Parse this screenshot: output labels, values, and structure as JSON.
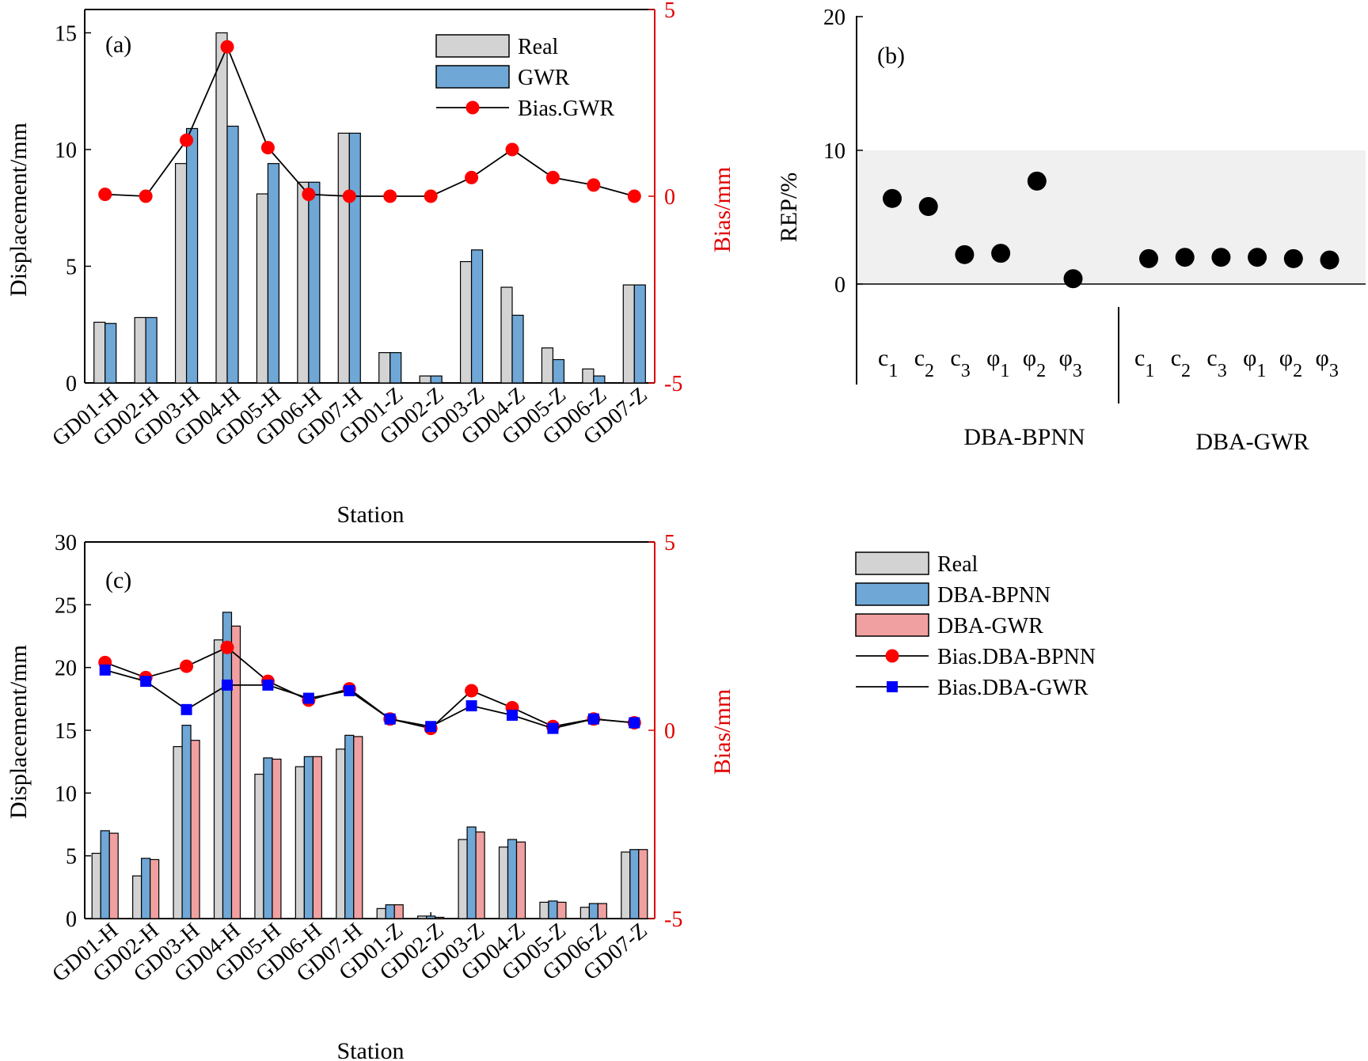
{
  "chart_data": [
    {
      "id": "a",
      "type": "bar",
      "panel_label": "(a)",
      "xlabel": "Station",
      "ylabel": "Displacement/mm",
      "ylabel_right": "Bias/mm",
      "ylim": [
        0,
        16
      ],
      "yticks": [
        "0",
        "5",
        "10",
        "15"
      ],
      "ylim_right": [
        -5,
        5
      ],
      "yticks_right": [
        "-5",
        "0",
        "5"
      ],
      "categories": [
        "GD01-H",
        "GD02-H",
        "GD03-H",
        "GD04-H",
        "GD05-H",
        "GD06-H",
        "GD07-H",
        "GD01-Z",
        "GD02-Z",
        "GD03-Z",
        "GD04-Z",
        "GD05-Z",
        "GD06-Z",
        "GD07-Z"
      ],
      "series": [
        {
          "name": "Real",
          "kind": "bar",
          "color": "#d3d3d3",
          "values": [
            2.6,
            2.8,
            9.4,
            15.0,
            8.1,
            8.6,
            10.7,
            1.3,
            0.3,
            5.2,
            4.1,
            1.5,
            0.6,
            4.2
          ]
        },
        {
          "name": "GWR",
          "kind": "bar",
          "color": "#6fa7d6",
          "values": [
            2.55,
            2.8,
            10.9,
            11.0,
            9.4,
            8.6,
            10.7,
            1.3,
            0.3,
            5.7,
            2.9,
            1.0,
            0.3,
            4.2
          ]
        },
        {
          "name": "Bias.GWR",
          "kind": "line",
          "axis": "right",
          "color": "#ff0000",
          "marker": "circle",
          "values": [
            0.05,
            0.0,
            1.5,
            4.0,
            1.3,
            0.05,
            0.0,
            0.0,
            0.0,
            0.5,
            1.25,
            0.5,
            0.3,
            0.0
          ]
        }
      ],
      "legend": "top-right"
    },
    {
      "id": "b",
      "type": "scatter",
      "panel_label": "(b)",
      "ylabel": "REP/%",
      "ylim": [
        -8,
        20
      ],
      "yticks": [
        "0",
        "10",
        "20"
      ],
      "shaded_band": [
        0,
        10
      ],
      "groups": [
        {
          "name": "DBA-BPNN",
          "params": [
            "c",
            "c",
            "c",
            "φ",
            "φ",
            "φ"
          ],
          "subscripts": [
            "1",
            "2",
            "3",
            "1",
            "2",
            "3"
          ],
          "values": [
            6.4,
            5.8,
            2.2,
            2.3,
            7.7,
            0.4
          ]
        },
        {
          "name": "DBA-GWR",
          "params": [
            "c",
            "c",
            "c",
            "φ",
            "φ",
            "φ"
          ],
          "subscripts": [
            "1",
            "2",
            "3",
            "1",
            "2",
            "3"
          ],
          "values": [
            1.9,
            2.0,
            2.0,
            2.0,
            1.9,
            1.8
          ]
        }
      ]
    },
    {
      "id": "c",
      "type": "bar",
      "panel_label": "(c)",
      "xlabel": "Station",
      "ylabel": "Displacement/mm",
      "ylabel_right": "Bias/mm",
      "ylim": [
        0,
        30
      ],
      "yticks": [
        "0",
        "5",
        "10",
        "15",
        "20",
        "25",
        "30"
      ],
      "ylim_right": [
        -5,
        5
      ],
      "yticks_right": [
        "-5",
        "0",
        "5"
      ],
      "categories": [
        "GD01-H",
        "GD02-H",
        "GD03-H",
        "GD04-H",
        "GD05-H",
        "GD06-H",
        "GD07-H",
        "GD01-Z",
        "GD02-Z",
        "GD03-Z",
        "GD04-Z",
        "GD05-Z",
        "GD06-Z",
        "GD07-Z"
      ],
      "series": [
        {
          "name": "Real",
          "kind": "bar",
          "color": "#d3d3d3",
          "values": [
            5.2,
            3.4,
            13.7,
            22.2,
            11.5,
            12.1,
            13.5,
            0.8,
            0.2,
            6.3,
            5.7,
            1.3,
            0.9,
            5.3
          ]
        },
        {
          "name": "DBA-BPNN",
          "kind": "bar",
          "color": "#6fa7d6",
          "values": [
            7.0,
            4.8,
            15.4,
            24.4,
            12.8,
            12.9,
            14.6,
            1.1,
            0.2,
            7.3,
            6.3,
            1.4,
            1.2,
            5.5
          ]
        },
        {
          "name": "DBA-GWR",
          "kind": "bar",
          "color": "#f0a0a0",
          "values": [
            6.8,
            4.7,
            14.2,
            23.3,
            12.7,
            12.9,
            14.5,
            1.1,
            0.1,
            6.9,
            6.1,
            1.3,
            1.2,
            5.5
          ]
        },
        {
          "name": "Bias.DBA-BPNN",
          "kind": "line",
          "axis": "right",
          "color": "#ff0000",
          "marker": "circle",
          "values": [
            1.8,
            1.4,
            1.7,
            2.2,
            1.3,
            0.8,
            1.1,
            0.3,
            0.05,
            1.05,
            0.6,
            0.1,
            0.3,
            0.2
          ]
        },
        {
          "name": "Bias.DBA-GWR",
          "kind": "line",
          "axis": "right",
          "color": "#0000ff",
          "marker": "square",
          "values": [
            1.6,
            1.3,
            0.55,
            1.2,
            1.2,
            0.85,
            1.05,
            0.3,
            0.1,
            0.65,
            0.4,
            0.05,
            0.3,
            0.2
          ]
        }
      ],
      "legend": "right-outside"
    }
  ]
}
